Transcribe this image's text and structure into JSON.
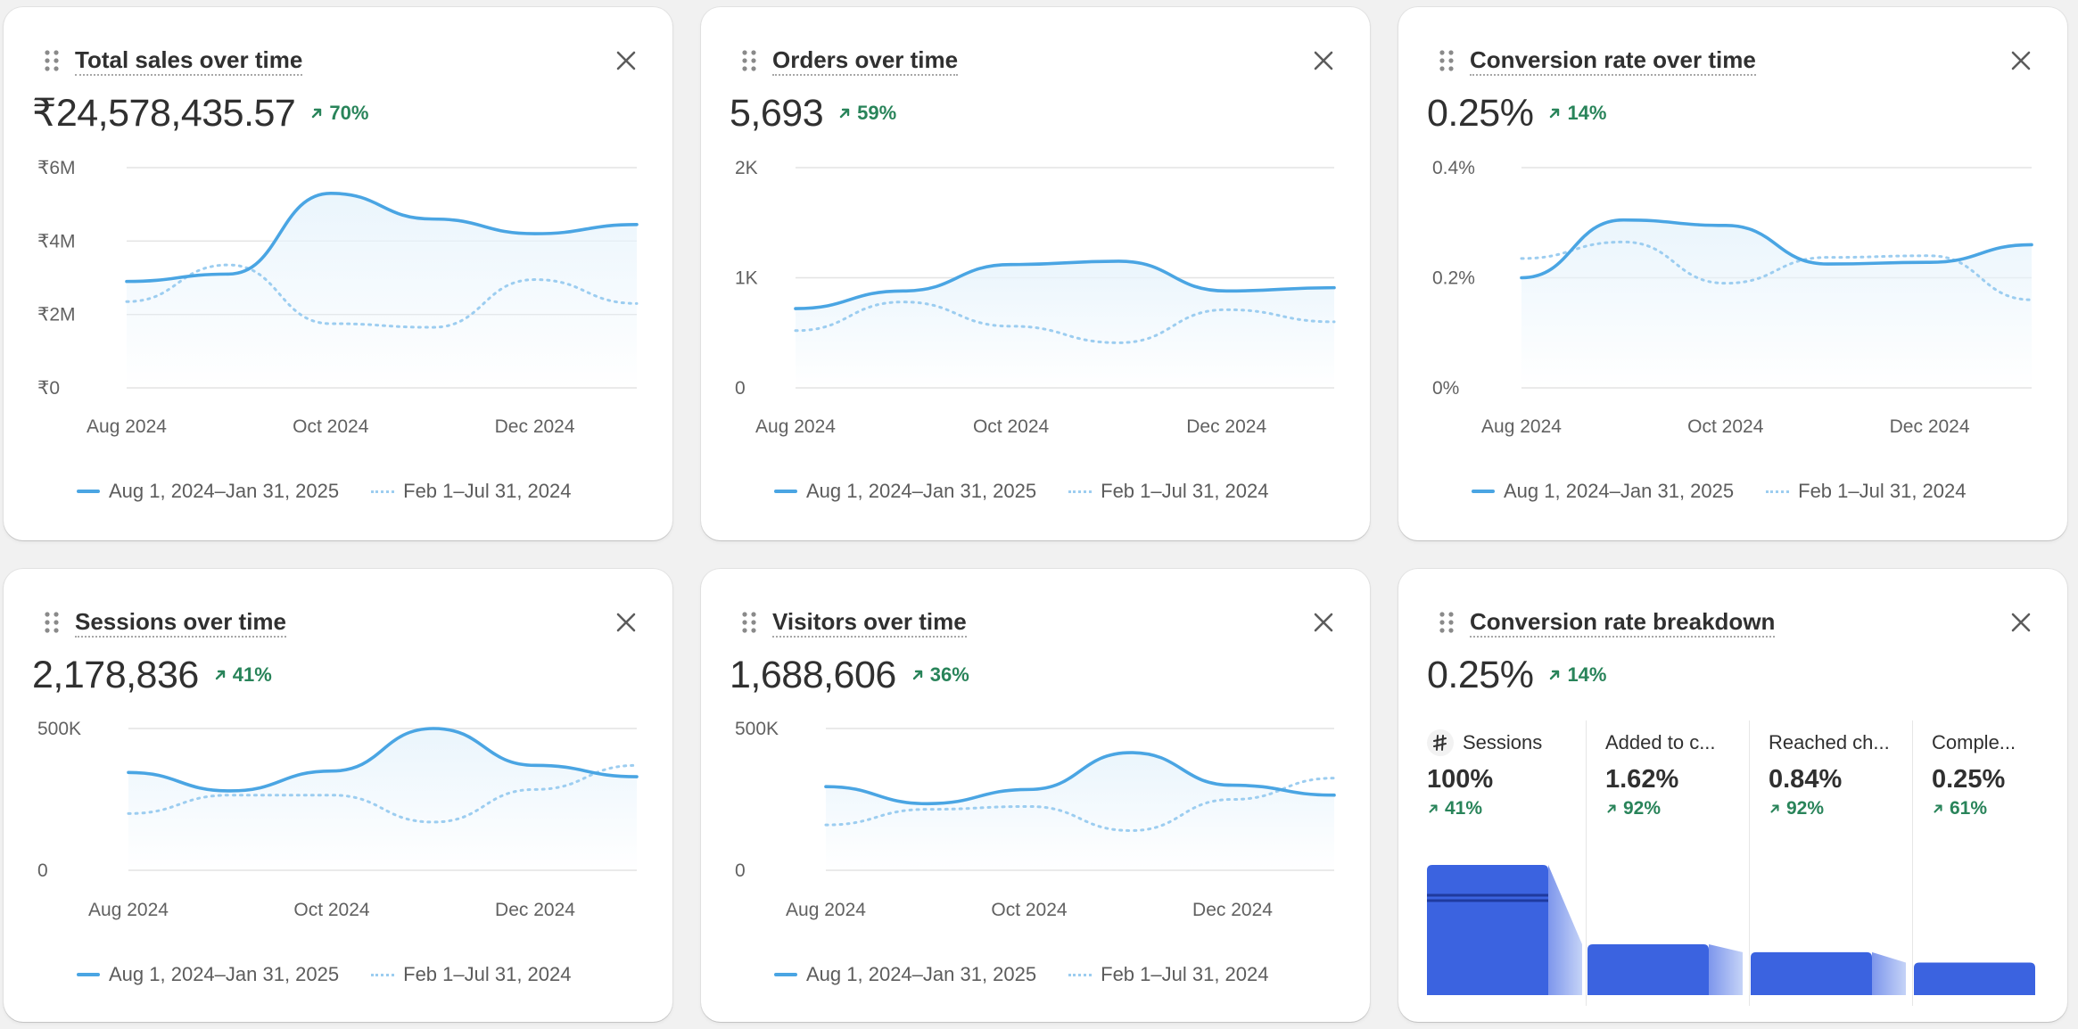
{
  "colors": {
    "primary_line": "#4aa5e3",
    "comparison_line": "#9ccdf0",
    "area_fill": "#e8f4fc",
    "positive_trend": "#29845a",
    "funnel_bar": "#3b63e0",
    "funnel_connector": "#a8bdf3",
    "grid": "#e3e3e3"
  },
  "icons": {
    "drag": "drag-handle-icon",
    "close": "close-icon",
    "trend_up": "arrow-up-right-icon",
    "sessions": "sessions-icon"
  },
  "legend": {
    "current": "Aug 1, 2024–Jan 31, 2025",
    "previous": "Feb 1–Jul 31, 2024"
  },
  "cards": {
    "total_sales": {
      "title": "Total sales over time",
      "value": "₹24,578,435.57",
      "change": "70%",
      "y_ticks": [
        "₹6M",
        "₹4M",
        "₹2M",
        "₹0"
      ],
      "x_ticks": [
        "Aug 2024",
        "Oct 2024",
        "Dec 2024"
      ]
    },
    "orders": {
      "title": "Orders over time",
      "value": "5,693",
      "change": "59%",
      "y_ticks": [
        "2K",
        "1K",
        "0"
      ],
      "x_ticks": [
        "Aug 2024",
        "Oct 2024",
        "Dec 2024"
      ]
    },
    "conversion_rate": {
      "title": "Conversion rate over time",
      "value": "0.25%",
      "change": "14%",
      "y_ticks": [
        "0.4%",
        "0.2%",
        "0%"
      ],
      "x_ticks": [
        "Aug 2024",
        "Oct 2024",
        "Dec 2024"
      ]
    },
    "sessions": {
      "title": "Sessions over time",
      "value": "2,178,836",
      "change": "41%",
      "y_ticks": [
        "500K",
        "0"
      ],
      "x_ticks": [
        "Aug 2024",
        "Oct 2024",
        "Dec 2024"
      ]
    },
    "visitors": {
      "title": "Visitors over time",
      "value": "1,688,606",
      "change": "36%",
      "y_ticks": [
        "500K",
        "0"
      ],
      "x_ticks": [
        "Aug 2024",
        "Oct 2024",
        "Dec 2024"
      ]
    },
    "breakdown": {
      "title": "Conversion rate breakdown",
      "value": "0.25%",
      "change": "14%",
      "steps": [
        {
          "label": "Sessions",
          "value": "100%",
          "change": "41%",
          "ratio": 1.0
        },
        {
          "label": "Added to c...",
          "value": "1.62%",
          "change": "92%",
          "ratio": 0.39
        },
        {
          "label": "Reached ch...",
          "value": "0.84%",
          "change": "92%",
          "ratio": 0.33
        },
        {
          "label": "Comple...",
          "value": "0.25%",
          "change": "61%",
          "ratio": 0.25
        }
      ]
    }
  },
  "chart_data": [
    {
      "type": "line",
      "title": "Total sales over time",
      "x": [
        "Aug 2024",
        "Sep 2024",
        "Oct 2024",
        "Nov 2024",
        "Dec 2024",
        "Jan 2025"
      ],
      "ylim": [
        0,
        6000000
      ],
      "y_ticks": [
        "₹6M",
        "₹4M",
        "₹2M",
        "₹0"
      ],
      "x_ticks": [
        "Aug 2024",
        "Oct 2024",
        "Dec 2024"
      ],
      "series": [
        {
          "name": "Aug 1, 2024–Jan 31, 2025",
          "style": "solid",
          "values": [
            2900000,
            3100000,
            5300000,
            4600000,
            4200000,
            4450000
          ]
        },
        {
          "name": "Feb 1–Jul 31, 2024",
          "style": "dotted",
          "values": [
            2350000,
            3350000,
            1750000,
            1650000,
            2950000,
            2300000
          ]
        }
      ]
    },
    {
      "type": "line",
      "title": "Orders over time",
      "x": [
        "Aug 2024",
        "Sep 2024",
        "Oct 2024",
        "Nov 2024",
        "Dec 2024",
        "Jan 2025"
      ],
      "ylim": [
        0,
        2000
      ],
      "y_ticks": [
        "2K",
        "1K",
        "0"
      ],
      "x_ticks": [
        "Aug 2024",
        "Oct 2024",
        "Dec 2024"
      ],
      "series": [
        {
          "name": "Aug 1, 2024–Jan 31, 2025",
          "style": "solid",
          "values": [
            720,
            880,
            1120,
            1150,
            880,
            910
          ]
        },
        {
          "name": "Feb 1–Jul 31, 2024",
          "style": "dotted",
          "values": [
            520,
            780,
            560,
            410,
            710,
            600
          ]
        }
      ]
    },
    {
      "type": "line",
      "title": "Conversion rate over time",
      "x": [
        "Aug 2024",
        "Sep 2024",
        "Oct 2024",
        "Nov 2024",
        "Dec 2024",
        "Jan 2025"
      ],
      "ylim": [
        0,
        0.4
      ],
      "y_ticks": [
        "0.4%",
        "0.2%",
        "0%"
      ],
      "x_ticks": [
        "Aug 2024",
        "Oct 2024",
        "Dec 2024"
      ],
      "series": [
        {
          "name": "Aug 1, 2024–Jan 31, 2025",
          "style": "solid",
          "values": [
            0.2,
            0.305,
            0.295,
            0.225,
            0.228,
            0.26
          ]
        },
        {
          "name": "Feb 1–Jul 31, 2024",
          "style": "dotted",
          "values": [
            0.235,
            0.265,
            0.19,
            0.237,
            0.24,
            0.16
          ]
        }
      ]
    },
    {
      "type": "line",
      "title": "Sessions over time",
      "x": [
        "Aug 2024",
        "Sep 2024",
        "Oct 2024",
        "Nov 2024",
        "Dec 2024",
        "Jan 2025"
      ],
      "ylim": [
        0,
        500000
      ],
      "y_ticks": [
        "500K",
        "0"
      ],
      "x_ticks": [
        "Aug 2024",
        "Oct 2024",
        "Dec 2024"
      ],
      "series": [
        {
          "name": "Aug 1, 2024–Jan 31, 2025",
          "style": "solid",
          "values": [
            345000,
            280000,
            350000,
            500000,
            370000,
            330000
          ]
        },
        {
          "name": "Feb 1–Jul 31, 2024",
          "style": "dotted",
          "values": [
            200000,
            265000,
            265000,
            170000,
            285000,
            370000
          ]
        }
      ]
    },
    {
      "type": "line",
      "title": "Visitors over time",
      "x": [
        "Aug 2024",
        "Sep 2024",
        "Oct 2024",
        "Nov 2024",
        "Dec 2024",
        "Jan 2025"
      ],
      "ylim": [
        0,
        500000
      ],
      "y_ticks": [
        "500K",
        "0"
      ],
      "x_ticks": [
        "Aug 2024",
        "Oct 2024",
        "Dec 2024"
      ],
      "series": [
        {
          "name": "Aug 1, 2024–Jan 31, 2025",
          "style": "solid",
          "values": [
            295000,
            235000,
            285000,
            415000,
            300000,
            265000
          ]
        },
        {
          "name": "Feb 1–Jul 31, 2024",
          "style": "dotted",
          "values": [
            160000,
            215000,
            225000,
            140000,
            250000,
            325000
          ]
        }
      ]
    }
  ]
}
